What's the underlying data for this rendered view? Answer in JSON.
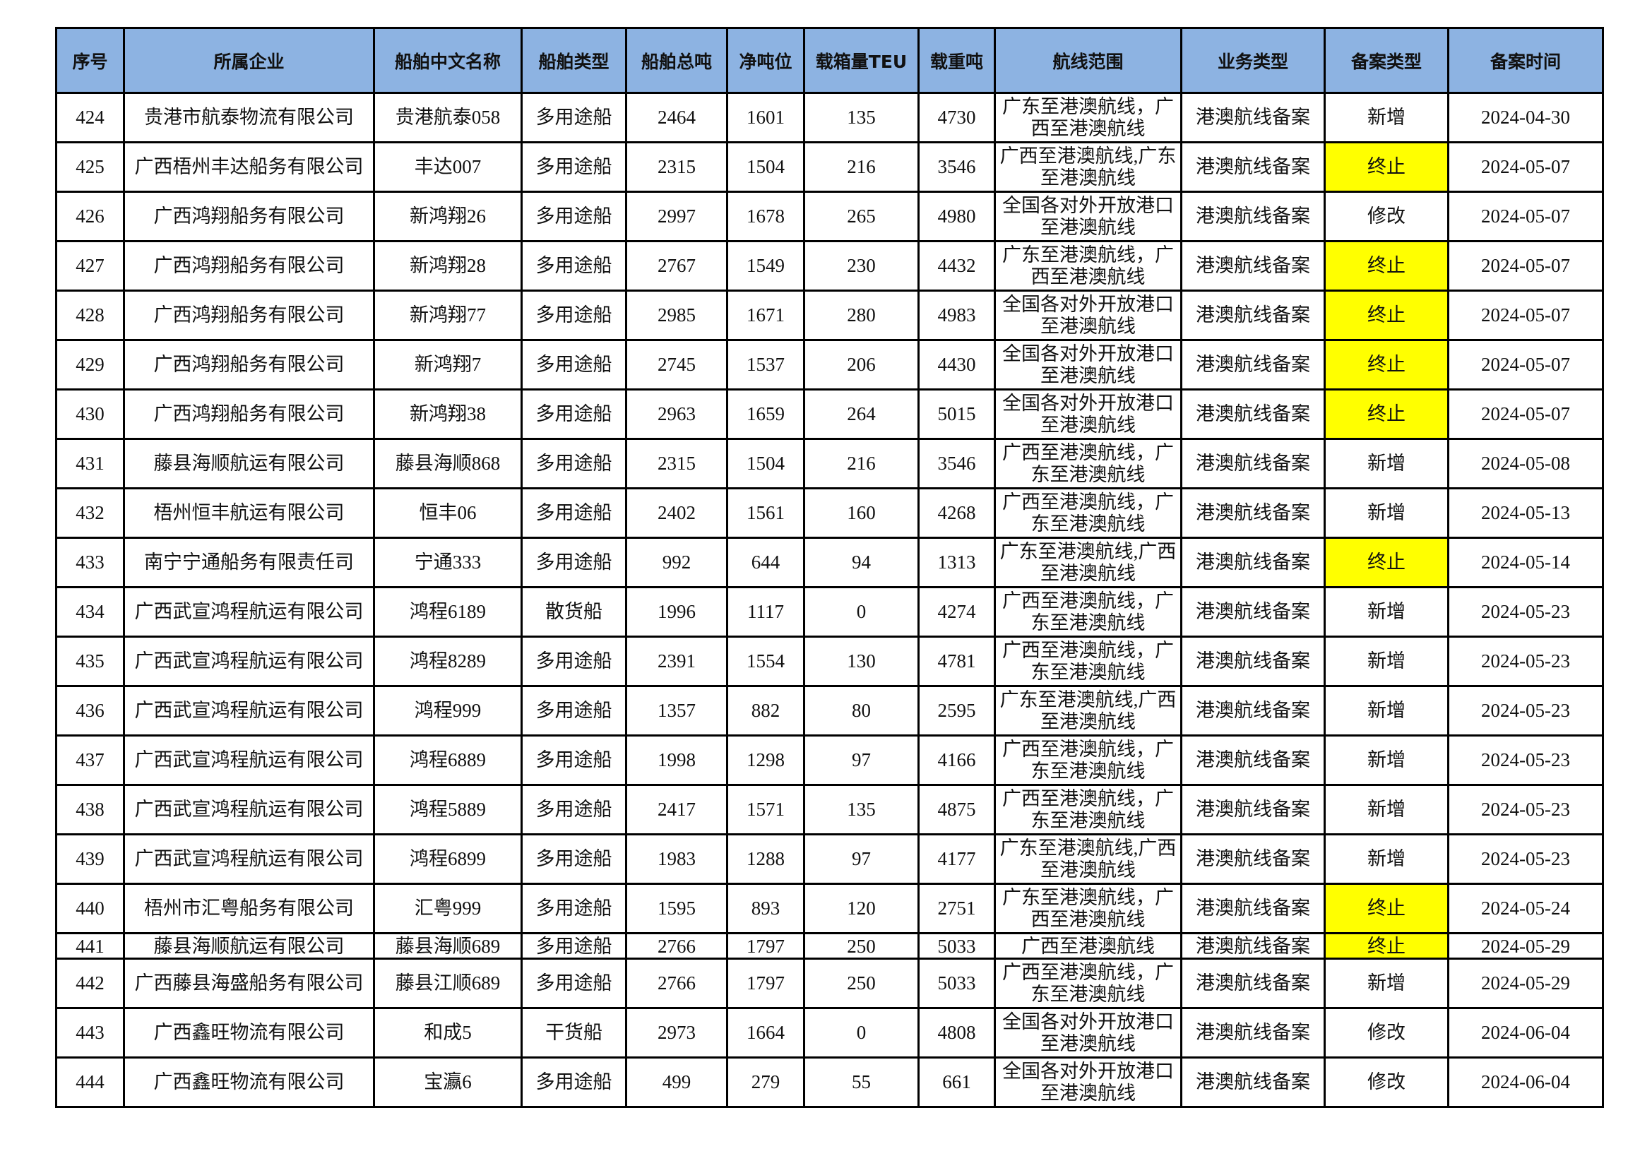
{
  "table": {
    "headers": [
      "序号",
      "所属企业",
      "船舶中文名称",
      "船舶类型",
      "船舶总吨",
      "净吨位",
      "载箱量TEU",
      "载重吨",
      "航线范围",
      "业务类型",
      "备案类型",
      "备案时间"
    ],
    "highlight_color": "#ffff00",
    "header_color": "#8db3e2",
    "rows": [
      {
        "cells": [
          "424",
          "贵港市航泰物流有限公司",
          "贵港航泰058",
          "多用途船",
          "2464",
          "1601",
          "135",
          "4730",
          "广东至港澳航线，广西至港澳航线",
          "港澳航线备案",
          "新增",
          "2024-04-30"
        ],
        "highlight": false
      },
      {
        "cells": [
          "425",
          "广西梧州丰达船务有限公司",
          "丰达007",
          "多用途船",
          "2315",
          "1504",
          "216",
          "3546",
          "广西至港澳航线,广东至港澳航线",
          "港澳航线备案",
          "终止",
          "2024-05-07"
        ],
        "highlight": true
      },
      {
        "cells": [
          "426",
          "广西鸿翔船务有限公司",
          "新鸿翔26",
          "多用途船",
          "2997",
          "1678",
          "265",
          "4980",
          "全国各对外开放港口至港澳航线",
          "港澳航线备案",
          "修改",
          "2024-05-07"
        ],
        "highlight": false
      },
      {
        "cells": [
          "427",
          "广西鸿翔船务有限公司",
          "新鸿翔28",
          "多用途船",
          "2767",
          "1549",
          "230",
          "4432",
          "广东至港澳航线，广西至港澳航线",
          "港澳航线备案",
          "终止",
          "2024-05-07"
        ],
        "highlight": true
      },
      {
        "cells": [
          "428",
          "广西鸿翔船务有限公司",
          "新鸿翔77",
          "多用途船",
          "2985",
          "1671",
          "280",
          "4983",
          "全国各对外开放港口至港澳航线",
          "港澳航线备案",
          "终止",
          "2024-05-07"
        ],
        "highlight": true
      },
      {
        "cells": [
          "429",
          "广西鸿翔船务有限公司",
          "新鸿翔7",
          "多用途船",
          "2745",
          "1537",
          "206",
          "4430",
          "全国各对外开放港口至港澳航线",
          "港澳航线备案",
          "终止",
          "2024-05-07"
        ],
        "highlight": true
      },
      {
        "cells": [
          "430",
          "广西鸿翔船务有限公司",
          "新鸿翔38",
          "多用途船",
          "2963",
          "1659",
          "264",
          "5015",
          "全国各对外开放港口至港澳航线",
          "港澳航线备案",
          "终止",
          "2024-05-07"
        ],
        "highlight": true
      },
      {
        "cells": [
          "431",
          "藤县海顺航运有限公司",
          "藤县海顺868",
          "多用途船",
          "2315",
          "1504",
          "216",
          "3546",
          "广西至港澳航线，广东至港澳航线",
          "港澳航线备案",
          "新增",
          "2024-05-08"
        ],
        "highlight": false
      },
      {
        "cells": [
          "432",
          "梧州恒丰航运有限公司",
          "恒丰06",
          "多用途船",
          "2402",
          "1561",
          "160",
          "4268",
          "广西至港澳航线，广东至港澳航线",
          "港澳航线备案",
          "新增",
          "2024-05-13"
        ],
        "highlight": false
      },
      {
        "cells": [
          "433",
          "南宁宁通船务有限责任司",
          "宁通333",
          "多用途船",
          "992",
          "644",
          "94",
          "1313",
          "广东至港澳航线,广西至港澳航线",
          "港澳航线备案",
          "终止",
          "2024-05-14"
        ],
        "highlight": true
      },
      {
        "cells": [
          "434",
          "广西武宣鸿程航运有限公司",
          "鸿程6189",
          "散货船",
          "1996",
          "1117",
          "0",
          "4274",
          "广西至港澳航线，广东至港澳航线",
          "港澳航线备案",
          "新增",
          "2024-05-23"
        ],
        "highlight": false
      },
      {
        "cells": [
          "435",
          "广西武宣鸿程航运有限公司",
          "鸿程8289",
          "多用途船",
          "2391",
          "1554",
          "130",
          "4781",
          "广西至港澳航线，广东至港澳航线",
          "港澳航线备案",
          "新增",
          "2024-05-23"
        ],
        "highlight": false
      },
      {
        "cells": [
          "436",
          "广西武宣鸿程航运有限公司",
          "鸿程999",
          "多用途船",
          "1357",
          "882",
          "80",
          "2595",
          "广东至港澳航线,广西至港澳航线",
          "港澳航线备案",
          "新增",
          "2024-05-23"
        ],
        "highlight": false
      },
      {
        "cells": [
          "437",
          "广西武宣鸿程航运有限公司",
          "鸿程6889",
          "多用途船",
          "1998",
          "1298",
          "97",
          "4166",
          "广西至港澳航线，广东至港澳航线",
          "港澳航线备案",
          "新增",
          "2024-05-23"
        ],
        "highlight": false
      },
      {
        "cells": [
          "438",
          "广西武宣鸿程航运有限公司",
          "鸿程5889",
          "多用途船",
          "2417",
          "1571",
          "135",
          "4875",
          "广西至港澳航线，广东至港澳航线",
          "港澳航线备案",
          "新增",
          "2024-05-23"
        ],
        "highlight": false
      },
      {
        "cells": [
          "439",
          "广西武宣鸿程航运有限公司",
          "鸿程6899",
          "多用途船",
          "1983",
          "1288",
          "97",
          "4177",
          "广东至港澳航线,广西至港澳航线",
          "港澳航线备案",
          "新增",
          "2024-05-23"
        ],
        "highlight": false
      },
      {
        "cells": [
          "440",
          "梧州市汇粤船务有限公司",
          "汇粤999",
          "多用途船",
          "1595",
          "893",
          "120",
          "2751",
          "广东至港澳航线，广西至港澳航线",
          "港澳航线备案",
          "终止",
          "2024-05-24"
        ],
        "highlight": true
      },
      {
        "cells": [
          "441",
          "藤县海顺航运有限公司",
          "藤县海顺689",
          "多用途船",
          "2766",
          "1797",
          "250",
          "5033",
          "广西至港澳航线",
          "港澳航线备案",
          "终止",
          "2024-05-29"
        ],
        "highlight": true,
        "short": true
      },
      {
        "cells": [
          "442",
          "广西藤县海盛船务有限公司",
          "藤县江顺689",
          "多用途船",
          "2766",
          "1797",
          "250",
          "5033",
          "广西至港澳航线，广东至港澳航线",
          "港澳航线备案",
          "新增",
          "2024-05-29"
        ],
        "highlight": false
      },
      {
        "cells": [
          "443",
          "广西鑫旺物流有限公司",
          "和成5",
          "干货船",
          "2973",
          "1664",
          "0",
          "4808",
          "全国各对外开放港口至港澳航线",
          "港澳航线备案",
          "修改",
          "2024-06-04"
        ],
        "highlight": false
      },
      {
        "cells": [
          "444",
          "广西鑫旺物流有限公司",
          "宝瀛6",
          "多用途船",
          "499",
          "279",
          "55",
          "661",
          "全国各对外开放港口至港澳航线",
          "港澳航线备案",
          "修改",
          "2024-06-04"
        ],
        "highlight": false
      }
    ]
  }
}
